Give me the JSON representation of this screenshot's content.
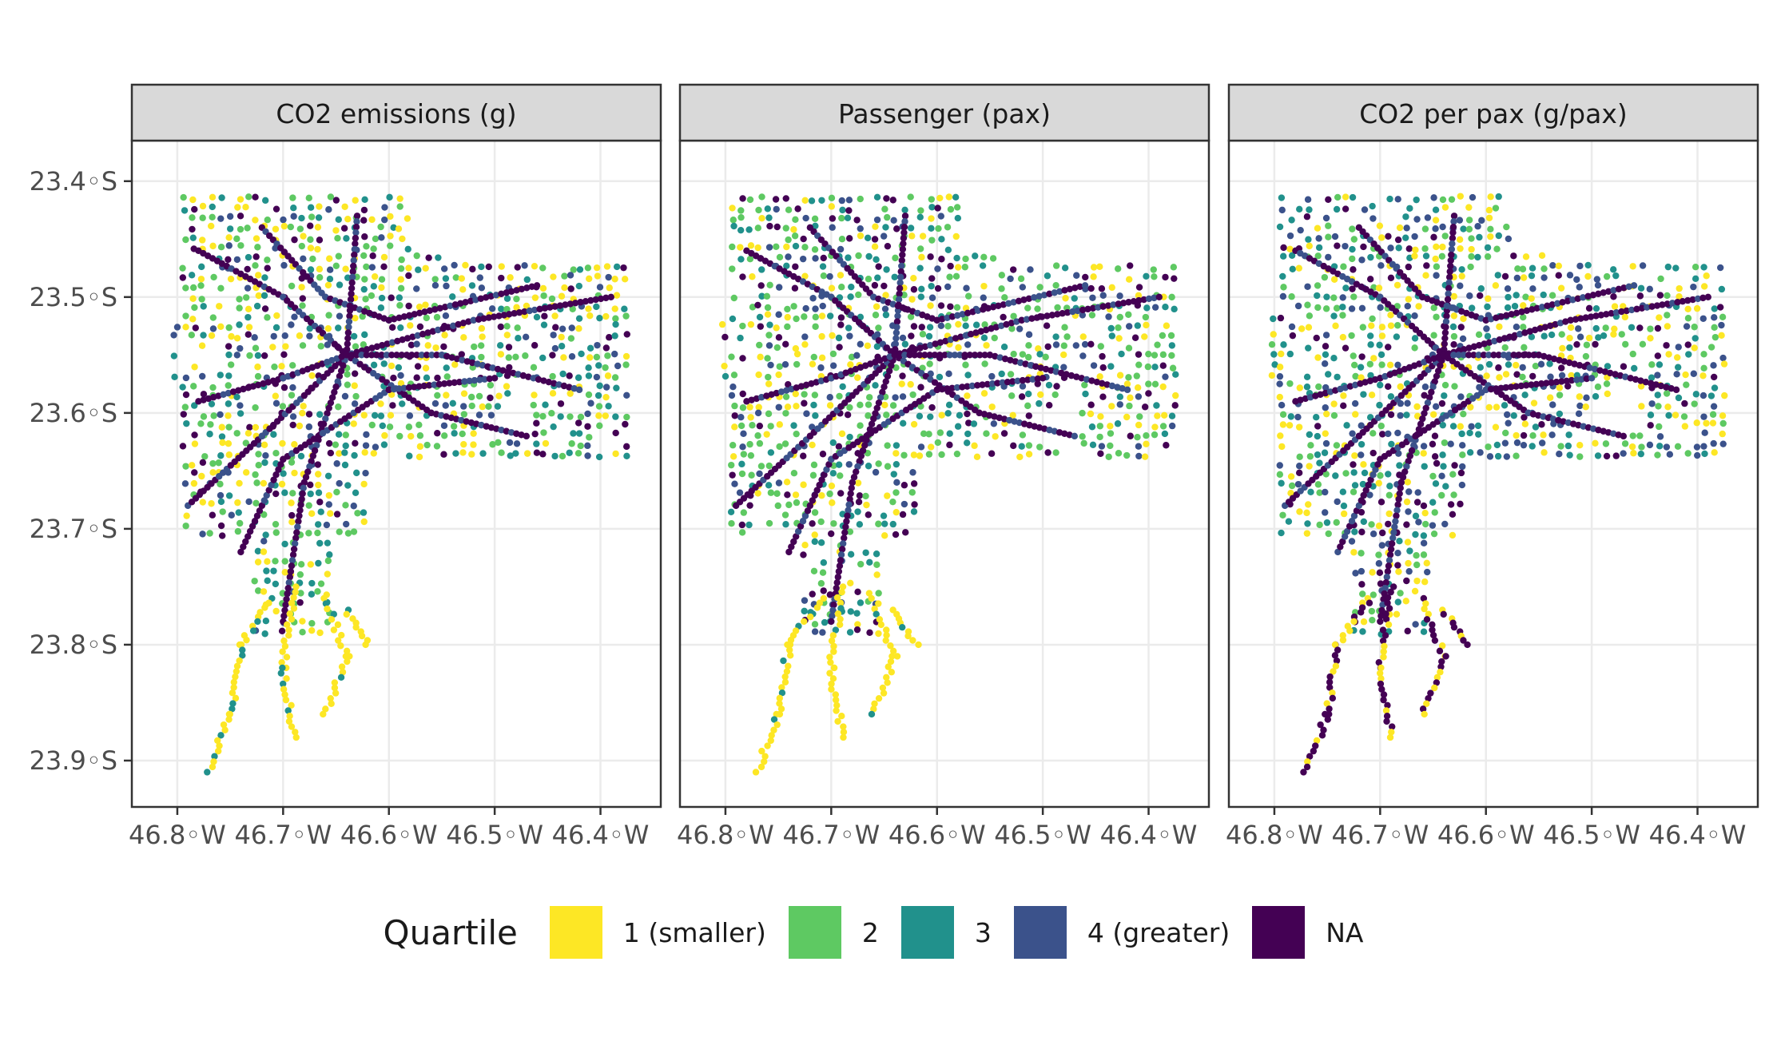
{
  "legend": {
    "title": "Quartile",
    "items": [
      {
        "label": "1 (smaller)",
        "color": "#fde725"
      },
      {
        "label": "2",
        "color": "#5ec962"
      },
      {
        "label": "3",
        "color": "#21918c"
      },
      {
        "label": "4 (greater)",
        "color": "#3b528b"
      },
      {
        "label": "NA",
        "color": "#440154"
      }
    ]
  },
  "axes": {
    "x_ticks": [
      "46.8◦W",
      "46.7◦W",
      "46.6◦W",
      "46.5◦W",
      "46.4◦W"
    ],
    "x_values": [
      -46.8,
      -46.7,
      -46.6,
      -46.5,
      -46.4
    ],
    "y_ticks": [
      "23.4◦S",
      "23.5◦S",
      "23.6◦S",
      "23.7◦S",
      "23.8◦S",
      "23.9◦S"
    ],
    "y_values": [
      -23.4,
      -23.5,
      -23.6,
      -23.7,
      -23.8,
      -23.9
    ],
    "xlim": [
      -46.843,
      -46.343
    ],
    "ylim": [
      -23.94,
      -23.365
    ]
  },
  "panels": [
    {
      "title": "CO2 emissions (g)",
      "weights": [
        0.24,
        0.26,
        0.22,
        0.14,
        0.14
      ]
    },
    {
      "title": "Passenger (pax)",
      "weights": [
        0.18,
        0.3,
        0.22,
        0.14,
        0.16
      ]
    },
    {
      "title": "CO2 per pax (g/pax)",
      "weights": [
        0.24,
        0.22,
        0.22,
        0.2,
        0.12
      ]
    }
  ]
}
